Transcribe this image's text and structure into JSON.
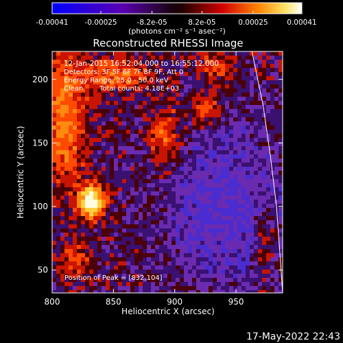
{
  "chart_data": {
    "type": "heatmap",
    "title": "Reconstructed RHESSI Image",
    "xlabel": "Heliocentric X (arcsec)",
    "ylabel": "Heliocentric Y (arcsec)",
    "xlim": [
      800,
      988
    ],
    "ylim": [
      32,
      222
    ],
    "x_ticks": [
      800,
      850,
      900,
      950
    ],
    "y_ticks": [
      50,
      100,
      150,
      200
    ],
    "colorbar": {
      "range": [
        -0.00041,
        0.00041
      ],
      "tick_values": [
        -0.00041,
        -0.00025,
        -8.2e-05,
        8.2e-05,
        0.00025,
        0.00041
      ],
      "tick_labels": [
        "-0.00041",
        "-0.00025",
        "-8.2e-05",
        "8.2e-05",
        "0.00025",
        "0.00041"
      ],
      "units_label": "(photons cm⁻² s⁻¹ asec⁻²)"
    },
    "annotations": {
      "time_range": "12-Jan-2015 16:52:04.000 to 16:55:12.000",
      "detectors": "Detectors: 3F 5F 6F 7F 8F 9F, Att 0",
      "energy": "Energy Range: 25.0 - 50.0 keV",
      "algorithm": "Clean",
      "counts": "Total counts: 4.18E+03",
      "peak": "Position of Peak = [832,104]"
    },
    "peak": {
      "x": 832,
      "y": 104
    },
    "limb_points": [
      [
        963,
        222
      ],
      [
        972,
        180
      ],
      [
        978,
        140
      ],
      [
        983,
        100
      ],
      [
        986,
        60
      ],
      [
        988,
        32
      ]
    ]
  },
  "timestamp": "17-May-2022 22:43",
  "colors": {
    "background": "#000000",
    "negative": "#6a2bb0",
    "positive": "#ff4000",
    "peak": "#fffff0",
    "limb": "#ffffff"
  }
}
